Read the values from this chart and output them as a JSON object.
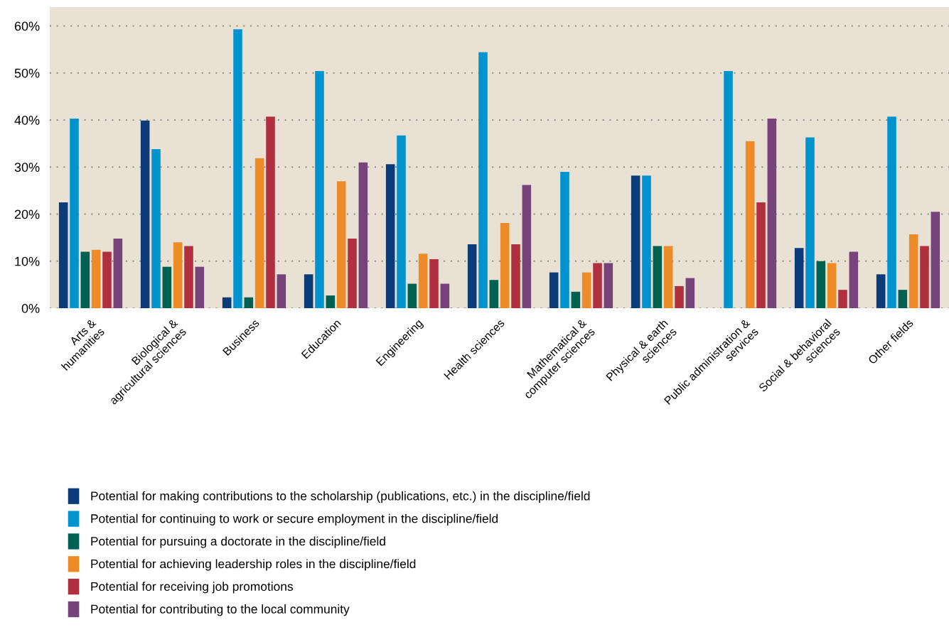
{
  "chart_data": {
    "type": "bar",
    "categories": [
      "Arts &\nhumanities",
      "Biological &\nagricultural sciences",
      "Business",
      "Education",
      "Engineering",
      "Health sciences",
      "Mathematical &\ncomputer sciences",
      "Physical & earth\nsciences",
      "Public administration &\nservices",
      "Social & behavioral\nsciences",
      "Other fields"
    ],
    "series": [
      {
        "name": "Potential for making contributions to the scholarship (publications, etc.) in the discipline/field",
        "color": "#0b3b78",
        "values": [
          22.5,
          39.9,
          2.3,
          7.2,
          30.6,
          13.6,
          7.6,
          28.2,
          0,
          12.8,
          7.2
        ]
      },
      {
        "name": "Potential for continuing to work or secure employment in the discipline/field",
        "color": "#0093d0",
        "values": [
          40.3,
          33.8,
          59.3,
          50.4,
          36.7,
          54.4,
          29.0,
          28.2,
          50.4,
          36.3,
          40.7
        ]
      },
      {
        "name": "Potential for pursuing a doctorate in the discipline/field",
        "color": "#006152",
        "values": [
          12.0,
          8.8,
          2.3,
          2.7,
          5.2,
          6.0,
          3.5,
          13.2,
          0,
          10.0,
          3.9
        ]
      },
      {
        "name": "Potential for achieving leadership roles in the discipline/field",
        "color": "#ec8b28",
        "values": [
          12.4,
          14.0,
          31.9,
          27.0,
          11.6,
          18.1,
          7.6,
          13.2,
          35.5,
          9.6,
          15.7
        ]
      },
      {
        "name": "Potential for receiving job promotions",
        "color": "#b03040",
        "values": [
          12.0,
          13.2,
          40.7,
          14.8,
          10.4,
          13.6,
          9.6,
          4.7,
          22.5,
          3.9,
          13.2
        ]
      },
      {
        "name": "Potential for contributing to the local community",
        "color": "#77437b",
        "values": [
          14.8,
          8.8,
          7.2,
          31.0,
          5.2,
          26.2,
          9.6,
          6.4,
          40.3,
          12.0,
          20.5
        ]
      }
    ],
    "ylim": [
      0,
      64
    ],
    "yticks": [
      {
        "value": 0,
        "label": "0%"
      },
      {
        "value": 10,
        "label": "10%"
      },
      {
        "value": 20,
        "label": "20%"
      },
      {
        "value": 30,
        "label": "30%"
      },
      {
        "value": 40,
        "label": "40%"
      },
      {
        "value": 50,
        "label": "50%"
      },
      {
        "value": 60,
        "label": "60%"
      }
    ],
    "grid": "y",
    "legend": "bottom"
  }
}
